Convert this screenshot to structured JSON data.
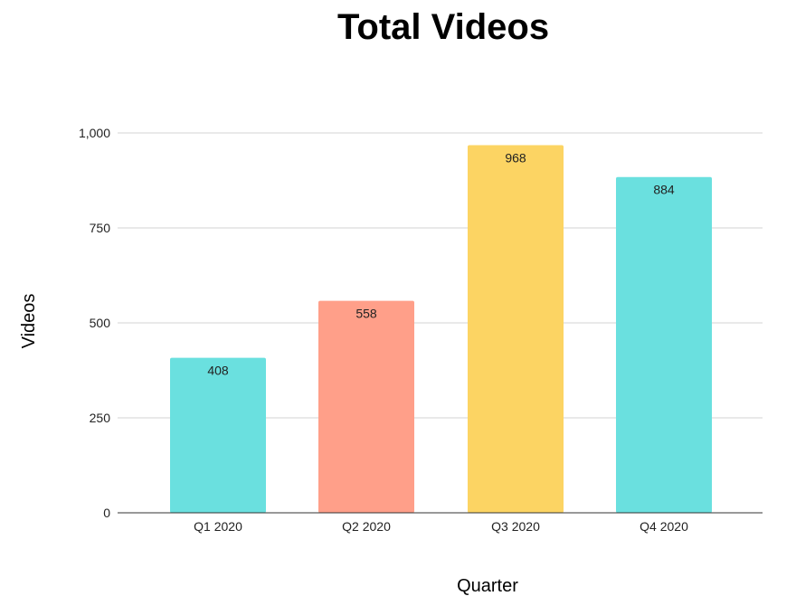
{
  "chart_data": {
    "type": "bar",
    "title": "Total Videos",
    "xlabel": "Quarter",
    "ylabel": "Videos",
    "categories": [
      "Q1 2020",
      "Q2 2020",
      "Q3 2020",
      "Q4 2020"
    ],
    "values": [
      408,
      558,
      968,
      884
    ],
    "data_labels": [
      "408",
      "558",
      "968",
      "884"
    ],
    "colors": [
      "#6ae0df",
      "#ff9f89",
      "#fcd463",
      "#6ae0df"
    ],
    "ylim": [
      0,
      1000
    ],
    "yticks": [
      0,
      250,
      500,
      750,
      1000
    ],
    "ytick_labels": [
      "0",
      "250",
      "500",
      "750",
      "1,000"
    ],
    "grid": true,
    "legend": "none"
  }
}
